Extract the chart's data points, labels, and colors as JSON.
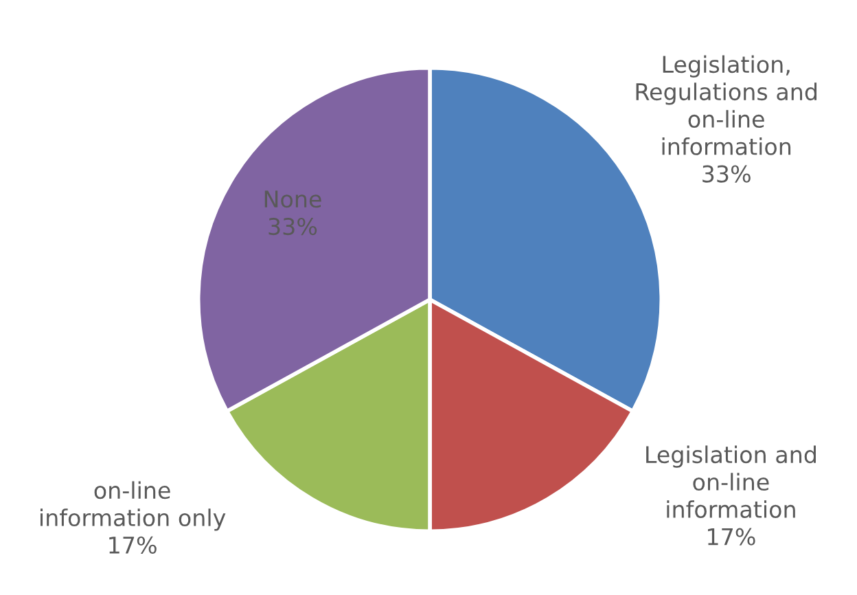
{
  "chart_data": {
    "type": "pie",
    "categories": [
      "Legislation,\nRegulations and\non-line\ninformation",
      "Legislation and\non-line\ninformation",
      "on-line\ninformation only",
      "None"
    ],
    "values": [
      33,
      17,
      17,
      33
    ],
    "colors": [
      "#4f81bd",
      "#c0504d",
      "#9bbb59",
      "#8064a2"
    ],
    "value_labels": [
      "33%",
      "17%",
      "17%",
      "33%"
    ],
    "legend": false
  }
}
